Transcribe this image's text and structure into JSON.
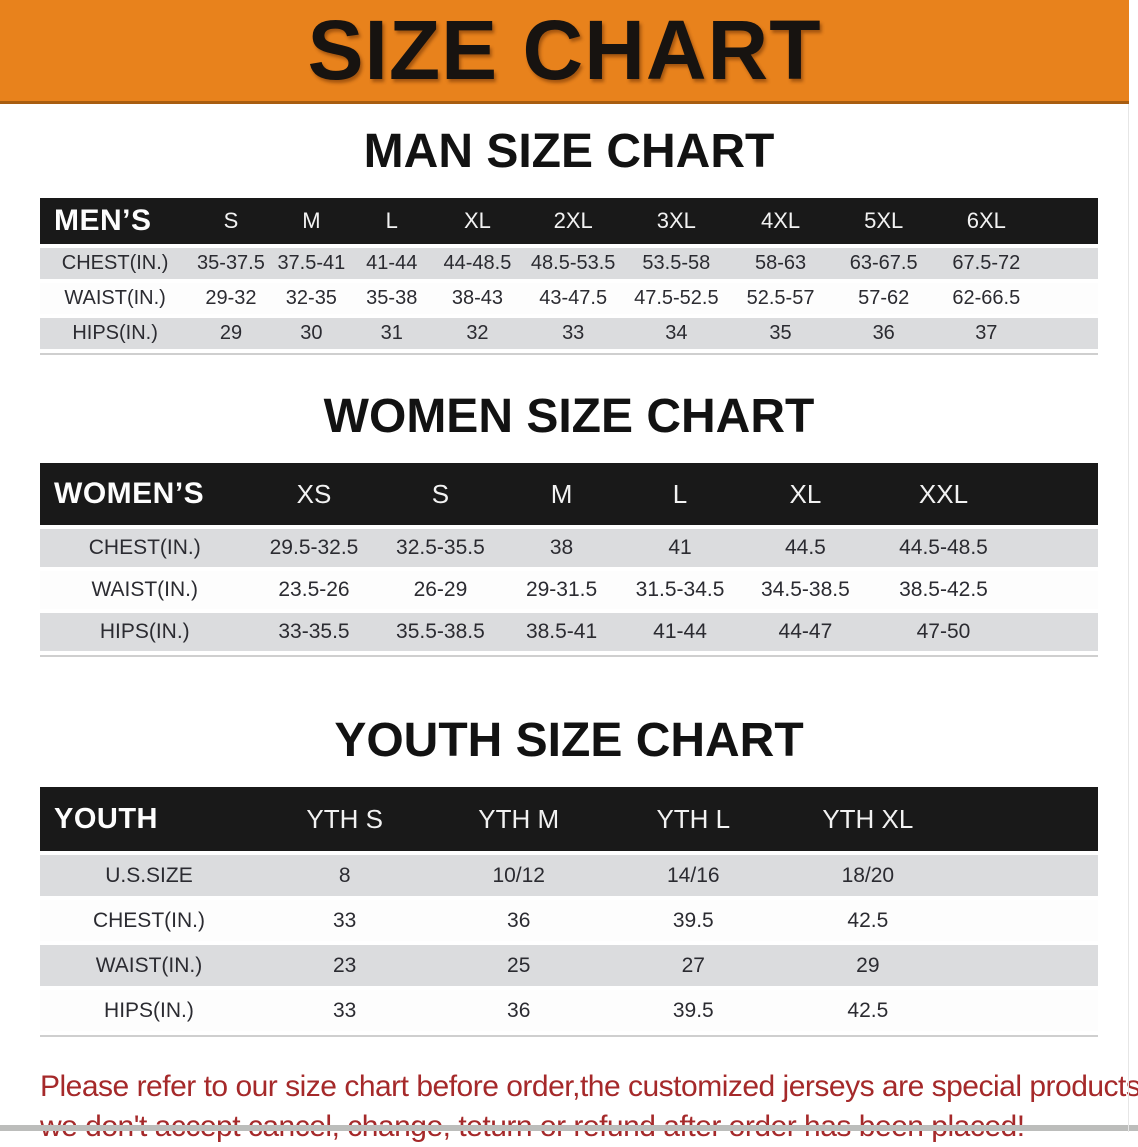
{
  "banner": {
    "title": "SIZE CHART"
  },
  "colors": {
    "banner_bg": "#e8821c",
    "header_bar": "#191919",
    "row_gray": "#dbdcde",
    "disclaimer_red": "#a5292a"
  },
  "sections": [
    {
      "heading": "MAN SIZE CHART",
      "table": {
        "label": "MEN’S",
        "sizes": [
          "S",
          "M",
          "L",
          "XL",
          "2XL",
          "3XL",
          "4XL",
          "5XL",
          "6XL"
        ],
        "rows": [
          {
            "label": "CHEST(IN.)",
            "values": [
              "35-37.5",
              "37.5-41",
              "41-44",
              "44-48.5",
              "48.5-53.5",
              "53.5-58",
              "58-63",
              "63-67.5",
              "67.5-72"
            ]
          },
          {
            "label": "WAIST(IN.)",
            "values": [
              "29-32",
              "32-35",
              "35-38",
              "38-43",
              "43-47.5",
              "47.5-52.5",
              "52.5-57",
              "57-62",
              "62-66.5"
            ]
          },
          {
            "label": "HIPS(IN.)",
            "values": [
              "29",
              "30",
              "31",
              "32",
              "33",
              "34",
              "35",
              "36",
              "37"
            ]
          }
        ]
      }
    },
    {
      "heading": "WOMEN SIZE CHART",
      "table": {
        "label": "WOMEN’S",
        "sizes": [
          "XS",
          "S",
          "M",
          "L",
          "XL",
          "XXL"
        ],
        "rows": [
          {
            "label": "CHEST(IN.)",
            "values": [
              "29.5-32.5",
              "32.5-35.5",
              "38",
              "41",
              "44.5",
              "44.5-48.5"
            ]
          },
          {
            "label": "WAIST(IN.)",
            "values": [
              "23.5-26",
              "26-29",
              "29-31.5",
              "31.5-34.5",
              "34.5-38.5",
              "38.5-42.5"
            ]
          },
          {
            "label": "HIPS(IN.)",
            "values": [
              "33-35.5",
              "35.5-38.5",
              "38.5-41",
              "41-44",
              "44-47",
              "47-50"
            ]
          }
        ]
      }
    },
    {
      "heading": "YOUTH SIZE CHART",
      "table": {
        "label": "YOUTH",
        "sizes": [
          "YTH S",
          "YTH M",
          "YTH L",
          "YTH XL"
        ],
        "rows": [
          {
            "label": "U.S.SIZE",
            "values": [
              "8",
              "10/12",
              "14/16",
              "18/20"
            ]
          },
          {
            "label": "CHEST(IN.)",
            "values": [
              "33",
              "36",
              "39.5",
              "42.5"
            ]
          },
          {
            "label": "WAIST(IN.)",
            "values": [
              "23",
              "25",
              "27",
              "29"
            ]
          },
          {
            "label": "HIPS(IN.)",
            "values": [
              "33",
              "36",
              "39.5",
              "42.5"
            ]
          }
        ]
      }
    }
  ],
  "disclaimer": {
    "line1": "Please refer to our size chart before order,the customized jerseys are special products,",
    "line2": "we don't accept cancel, change, teturn or refund after order has been placed!"
  }
}
